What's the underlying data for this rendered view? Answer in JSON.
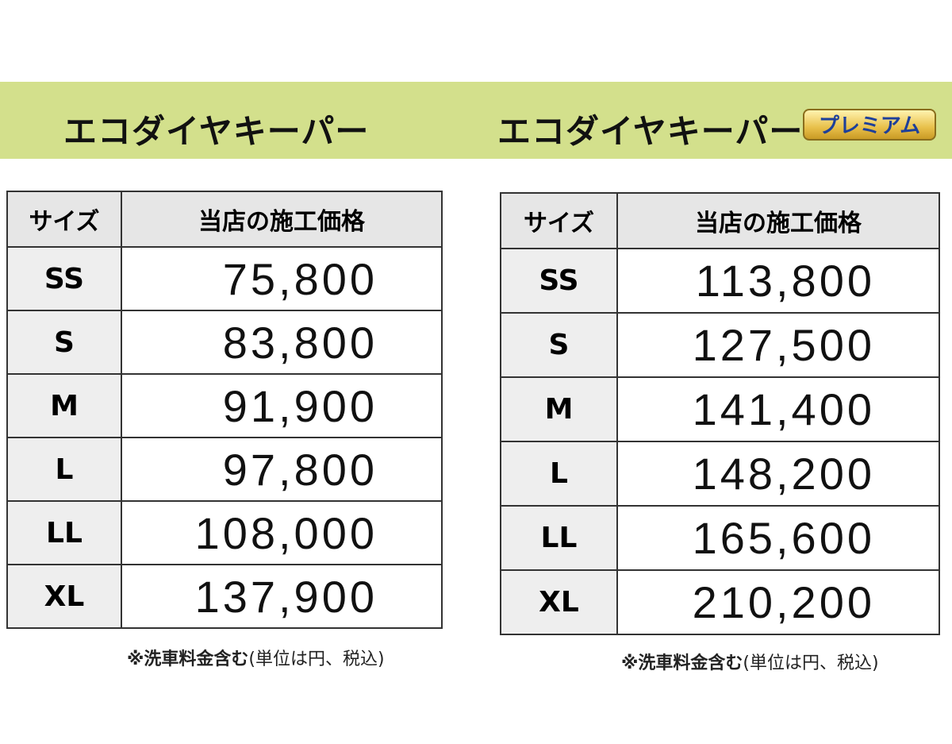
{
  "left": {
    "title": "エコダイヤキーパー",
    "table": {
      "header": [
        "サイズ",
        "当店の施工価格"
      ],
      "rows": [
        [
          "SS",
          "75,800"
        ],
        [
          "S",
          "83,800"
        ],
        [
          "M",
          "91,900"
        ],
        [
          "L",
          "97,800"
        ],
        [
          "LL",
          "108,000"
        ],
        [
          "XL",
          "137,900"
        ]
      ]
    },
    "note": [
      "※洗車料金含む",
      "(単位は円、税込)"
    ]
  },
  "right": {
    "title": "エコダイヤキーパー",
    "badge": "プレミアム",
    "table": {
      "header": [
        "サイズ",
        "当店の施工価格"
      ],
      "rows": [
        [
          "SS",
          "113,800"
        ],
        [
          "S",
          "127,500"
        ],
        [
          "M",
          "141,400"
        ],
        [
          "L",
          "148,200"
        ],
        [
          "LL",
          "165,600"
        ],
        [
          "XL",
          "210,200"
        ]
      ]
    },
    "note": [
      "※洗車料金含む",
      "(単位は円、税込)"
    ]
  }
}
